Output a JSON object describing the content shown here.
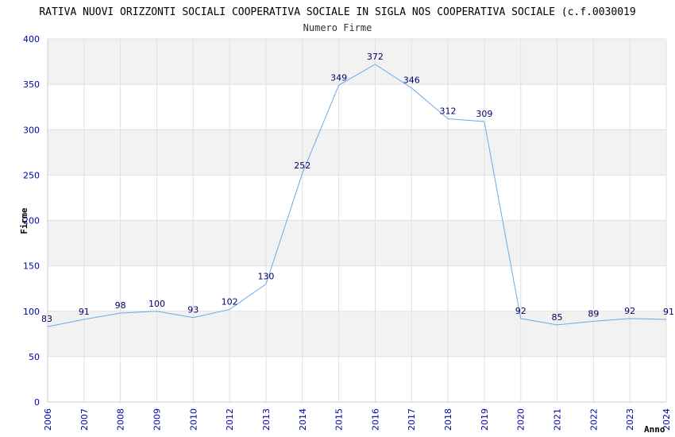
{
  "chart_data": {
    "type": "line",
    "title": "RATIVA NUOVI ORIZZONTI SOCIALI COOPERATIVA SOCIALE IN SIGLA NOS COOPERATIVA SOCIALE (c.f.0030019",
    "subtitle": "Numero Firme",
    "xlabel": "Anno",
    "ylabel": "Firme",
    "ylim": [
      0,
      400
    ],
    "yticks": [
      0,
      50,
      100,
      150,
      200,
      250,
      300,
      350,
      400
    ],
    "grid": true,
    "categories": [
      "2006",
      "2007",
      "2008",
      "2009",
      "2010",
      "2012",
      "2013",
      "2014",
      "2015",
      "2016",
      "2017",
      "2018",
      "2019",
      "2020",
      "2021",
      "2022",
      "2023",
      "2024"
    ],
    "series": [
      {
        "values": [
          83,
          91,
          98,
          100,
          93,
          102,
          130,
          252,
          349,
          372,
          346,
          312,
          309,
          92,
          85,
          89,
          92,
          91
        ]
      }
    ],
    "colors": {
      "line": "#6aaae8",
      "band": "#f2f2f2",
      "grid": "#e0e0e0",
      "axis": "#cccccc",
      "tick_text": "#0000aa",
      "data_text": "#000066"
    }
  }
}
